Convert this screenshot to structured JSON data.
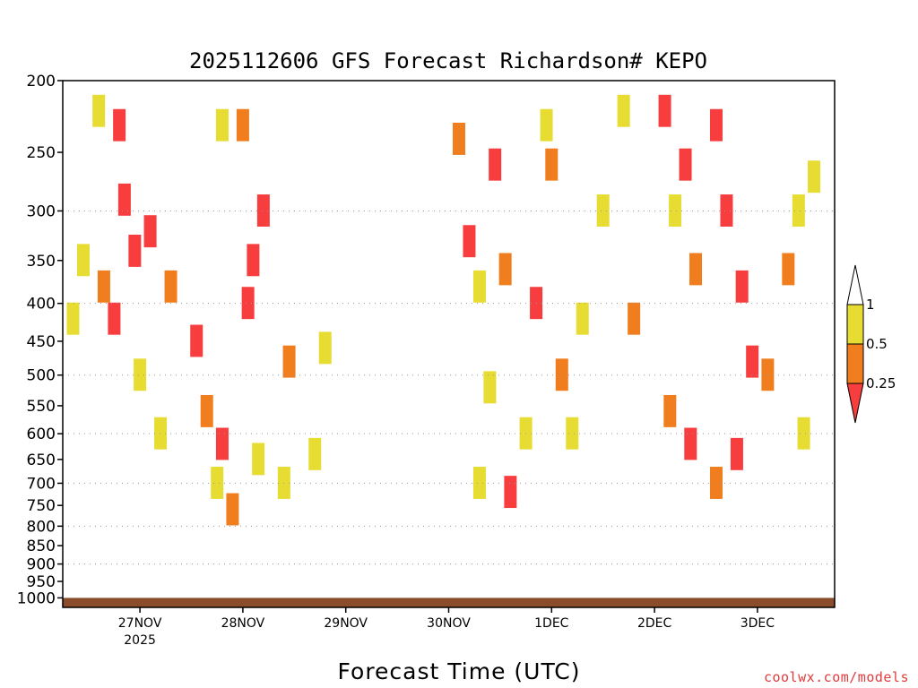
{
  "chart_data": {
    "type": "heatmap",
    "title": "2025112606 GFS Forecast Richardson# KEPO",
    "xlabel": "Forecast Time (UTC)",
    "y_scale": "log",
    "y_direction": "pressure decreasing upward",
    "ylim": [
      1030,
      200
    ],
    "y_ticks": [
      200,
      250,
      300,
      350,
      400,
      450,
      500,
      550,
      600,
      650,
      700,
      750,
      800,
      850,
      900,
      950,
      1000
    ],
    "gridlines_at": [
      300,
      400,
      500,
      600,
      700,
      800,
      900
    ],
    "x_ticks": [
      {
        "label": "27NOV",
        "sub": "2025",
        "day": 27
      },
      {
        "label": "28NOV",
        "sub": "",
        "day": 28
      },
      {
        "label": "29NOV",
        "sub": "",
        "day": 29
      },
      {
        "label": "30NOV",
        "sub": "",
        "day": 30
      },
      {
        "label": "1DEC",
        "sub": "",
        "day": 31
      },
      {
        "label": "2DEC",
        "sub": "",
        "day": 32
      },
      {
        "label": "3DEC",
        "sub": "",
        "day": 33
      }
    ],
    "xlim_days": [
      26.25,
      33.75
    ],
    "colorbar": {
      "levels": [
        "1",
        "0.5",
        "0.25"
      ],
      "colors": {
        "lt_025": "#f73d3d",
        "025_05": "#f07e1e",
        "05_1": "#e6dc32",
        "gt_1": "#ffffff"
      }
    },
    "ground_color": "#8b4c2c",
    "cells": [
      {
        "t": 26.35,
        "p": 420,
        "v": 0.6
      },
      {
        "t": 26.45,
        "p": 350,
        "v": 0.6
      },
      {
        "t": 26.6,
        "p": 220,
        "v": 0.7
      },
      {
        "t": 26.8,
        "p": 230,
        "v": 0.15
      },
      {
        "t": 26.85,
        "p": 290,
        "v": 0.2
      },
      {
        "t": 26.95,
        "p": 340,
        "v": 0.15
      },
      {
        "t": 26.65,
        "p": 380,
        "v": 0.4
      },
      {
        "t": 26.75,
        "p": 420,
        "v": 0.15
      },
      {
        "t": 27.1,
        "p": 320,
        "v": 0.15
      },
      {
        "t": 27.3,
        "p": 380,
        "v": 0.4
      },
      {
        "t": 27.0,
        "p": 500,
        "v": 0.65
      },
      {
        "t": 27.2,
        "p": 600,
        "v": 0.7
      },
      {
        "t": 27.55,
        "p": 450,
        "v": 0.15
      },
      {
        "t": 27.65,
        "p": 560,
        "v": 0.35
      },
      {
        "t": 27.8,
        "p": 620,
        "v": 0.15
      },
      {
        "t": 27.75,
        "p": 700,
        "v": 0.6
      },
      {
        "t": 27.9,
        "p": 760,
        "v": 0.4
      },
      {
        "t": 27.8,
        "p": 230,
        "v": 0.8
      },
      {
        "t": 28.0,
        "p": 230,
        "v": 0.3
      },
      {
        "t": 28.1,
        "p": 350,
        "v": 0.15
      },
      {
        "t": 28.05,
        "p": 400,
        "v": 0.15
      },
      {
        "t": 28.15,
        "p": 650,
        "v": 0.6
      },
      {
        "t": 28.4,
        "p": 700,
        "v": 0.7
      },
      {
        "t": 28.7,
        "p": 640,
        "v": 0.7
      },
      {
        "t": 28.45,
        "p": 480,
        "v": 0.3
      },
      {
        "t": 28.8,
        "p": 460,
        "v": 0.6
      },
      {
        "t": 28.2,
        "p": 300,
        "v": 0.15
      },
      {
        "t": 30.1,
        "p": 240,
        "v": 0.3
      },
      {
        "t": 30.2,
        "p": 330,
        "v": 0.2
      },
      {
        "t": 30.3,
        "p": 380,
        "v": 0.6
      },
      {
        "t": 30.45,
        "p": 260,
        "v": 0.15
      },
      {
        "t": 30.55,
        "p": 360,
        "v": 0.4
      },
      {
        "t": 30.4,
        "p": 520,
        "v": 0.7
      },
      {
        "t": 30.3,
        "p": 700,
        "v": 0.65
      },
      {
        "t": 30.6,
        "p": 720,
        "v": 0.15
      },
      {
        "t": 30.75,
        "p": 600,
        "v": 0.6
      },
      {
        "t": 30.85,
        "p": 400,
        "v": 0.15
      },
      {
        "t": 30.95,
        "p": 230,
        "v": 0.7
      },
      {
        "t": 31.0,
        "p": 260,
        "v": 0.3
      },
      {
        "t": 31.1,
        "p": 500,
        "v": 0.4
      },
      {
        "t": 31.2,
        "p": 600,
        "v": 0.6
      },
      {
        "t": 31.3,
        "p": 420,
        "v": 0.7
      },
      {
        "t": 31.5,
        "p": 300,
        "v": 0.7
      },
      {
        "t": 31.7,
        "p": 220,
        "v": 0.6
      },
      {
        "t": 31.8,
        "p": 420,
        "v": 0.3
      },
      {
        "t": 32.1,
        "p": 220,
        "v": 0.15
      },
      {
        "t": 32.2,
        "p": 300,
        "v": 0.6
      },
      {
        "t": 32.3,
        "p": 260,
        "v": 0.15
      },
      {
        "t": 32.4,
        "p": 360,
        "v": 0.3
      },
      {
        "t": 32.15,
        "p": 560,
        "v": 0.3
      },
      {
        "t": 32.35,
        "p": 620,
        "v": 0.15
      },
      {
        "t": 32.6,
        "p": 230,
        "v": 0.15
      },
      {
        "t": 32.7,
        "p": 300,
        "v": 0.15
      },
      {
        "t": 32.85,
        "p": 380,
        "v": 0.15
      },
      {
        "t": 32.95,
        "p": 480,
        "v": 0.15
      },
      {
        "t": 33.1,
        "p": 500,
        "v": 0.3
      },
      {
        "t": 32.6,
        "p": 700,
        "v": 0.4
      },
      {
        "t": 32.8,
        "p": 640,
        "v": 0.15
      },
      {
        "t": 33.3,
        "p": 360,
        "v": 0.4
      },
      {
        "t": 33.4,
        "p": 300,
        "v": 0.6
      },
      {
        "t": 33.45,
        "p": 600,
        "v": 0.6
      },
      {
        "t": 33.55,
        "p": 270,
        "v": 0.7
      }
    ]
  },
  "credit": {
    "text": "coolwx.com/models",
    "color": "#e03c3c"
  }
}
